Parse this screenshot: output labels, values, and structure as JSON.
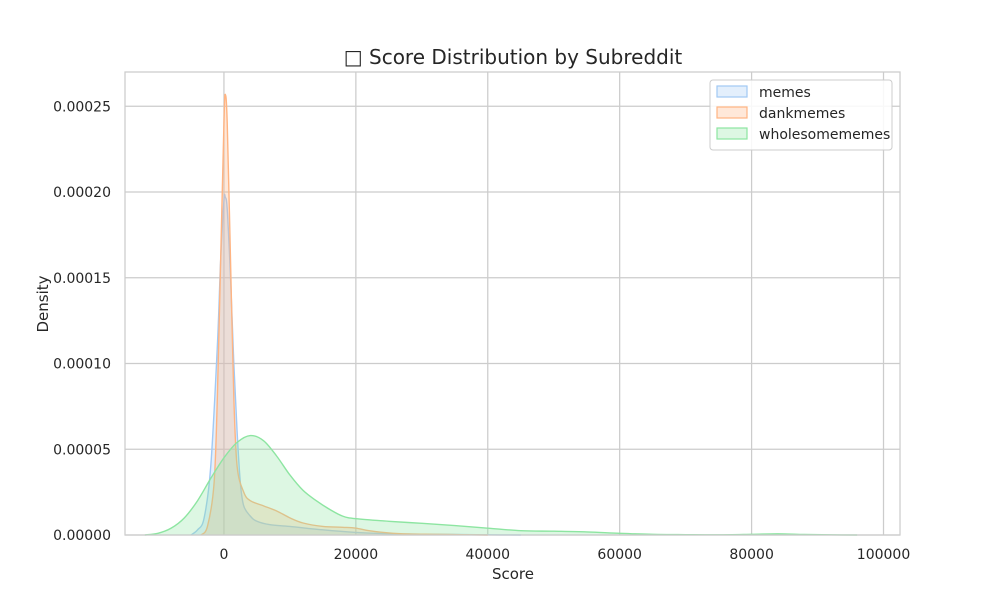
{
  "chart_data": {
    "type": "area",
    "title": "□ Score Distribution by Subreddit",
    "xlabel": "Score",
    "ylabel": "Density",
    "xlim": [
      -15000,
      102500
    ],
    "ylim": [
      0,
      0.00027
    ],
    "xticks": [
      0,
      20000,
      40000,
      60000,
      80000,
      100000
    ],
    "xtick_labels": [
      "0",
      "20000",
      "40000",
      "60000",
      "80000",
      "100000"
    ],
    "yticks": [
      0,
      5e-05,
      0.0001,
      0.00015,
      0.0002,
      0.00025
    ],
    "ytick_labels": [
      "0.00000",
      "0.00005",
      "0.00010",
      "0.00015",
      "0.00020",
      "0.00025"
    ],
    "grid": true,
    "legend_position": "top-right",
    "series": [
      {
        "name": "memes",
        "color": "#a1c9f4",
        "fill": "#dbeaf8",
        "points": [
          [
            -5000,
            0
          ],
          [
            -4000,
            3e-06
          ],
          [
            -3000,
            1e-05
          ],
          [
            -2000,
            4e-05
          ],
          [
            -1000,
            0.00011
          ],
          [
            -500,
            0.00016
          ],
          [
            0,
            0.000195
          ],
          [
            200,
            0.000197
          ],
          [
            500,
            0.00019
          ],
          [
            1000,
            0.00015
          ],
          [
            1500,
            0.0001
          ],
          [
            2000,
            6e-05
          ],
          [
            2500,
            3e-05
          ],
          [
            3000,
            1.7e-05
          ],
          [
            4000,
            1.1e-05
          ],
          [
            5000,
            8e-06
          ],
          [
            7000,
            6e-06
          ],
          [
            10000,
            5e-06
          ],
          [
            15000,
            3e-06
          ],
          [
            20000,
            1.5e-06
          ],
          [
            25000,
            7e-07
          ],
          [
            30000,
            5e-07
          ],
          [
            35000,
            3e-07
          ],
          [
            40000,
            1e-07
          ],
          [
            45000,
            0
          ]
        ]
      },
      {
        "name": "dankmemes",
        "color": "#ffb482",
        "fill": "#f6dccb",
        "points": [
          [
            -3500,
            0
          ],
          [
            -2500,
            5e-06
          ],
          [
            -1500,
            3e-05
          ],
          [
            -1000,
            8e-05
          ],
          [
            -500,
            0.00016
          ],
          [
            0,
            0.00024
          ],
          [
            200,
            0.000257
          ],
          [
            500,
            0.00024
          ],
          [
            1000,
            0.00016
          ],
          [
            1500,
            8e-05
          ],
          [
            2000,
            4e-05
          ],
          [
            3000,
            2.5e-05
          ],
          [
            4000,
            2e-05
          ],
          [
            6000,
            1.7e-05
          ],
          [
            8000,
            1.4e-05
          ],
          [
            10000,
            1e-05
          ],
          [
            12000,
            7e-06
          ],
          [
            15000,
            5e-06
          ],
          [
            18000,
            4.5e-06
          ],
          [
            20000,
            4e-06
          ],
          [
            22000,
            2.5e-06
          ],
          [
            25000,
            1.2e-06
          ],
          [
            28000,
            6e-07
          ],
          [
            32000,
            4e-07
          ],
          [
            36000,
            2e-07
          ],
          [
            40000,
            0
          ]
        ]
      },
      {
        "name": "wholesomememes",
        "color": "#8de5a1",
        "fill": "#dff6e4",
        "points": [
          [
            -12000,
            0
          ],
          [
            -10000,
            1e-06
          ],
          [
            -8000,
            4e-06
          ],
          [
            -6000,
            1e-05
          ],
          [
            -4000,
            2e-05
          ],
          [
            -2000,
            3.3e-05
          ],
          [
            0,
            4.5e-05
          ],
          [
            2000,
            5.4e-05
          ],
          [
            4000,
            5.8e-05
          ],
          [
            6000,
            5.5e-05
          ],
          [
            8000,
            4.6e-05
          ],
          [
            10000,
            3.5e-05
          ],
          [
            12000,
            2.6e-05
          ],
          [
            14000,
            2e-05
          ],
          [
            16000,
            1.5e-05
          ],
          [
            18000,
            1.1e-05
          ],
          [
            20000,
            9.5e-06
          ],
          [
            25000,
            8e-06
          ],
          [
            30000,
            6.8e-06
          ],
          [
            35000,
            5.5e-06
          ],
          [
            40000,
            4e-06
          ],
          [
            45000,
            2.5e-06
          ],
          [
            50000,
            2.2e-06
          ],
          [
            55000,
            1.8e-06
          ],
          [
            60000,
            1e-06
          ],
          [
            65000,
            4e-07
          ],
          [
            70000,
            2e-07
          ],
          [
            75000,
            1e-07
          ],
          [
            80000,
            4e-07
          ],
          [
            84000,
            7e-07
          ],
          [
            88000,
            3e-07
          ],
          [
            92000,
            1e-07
          ],
          [
            96000,
            0
          ]
        ]
      }
    ]
  }
}
